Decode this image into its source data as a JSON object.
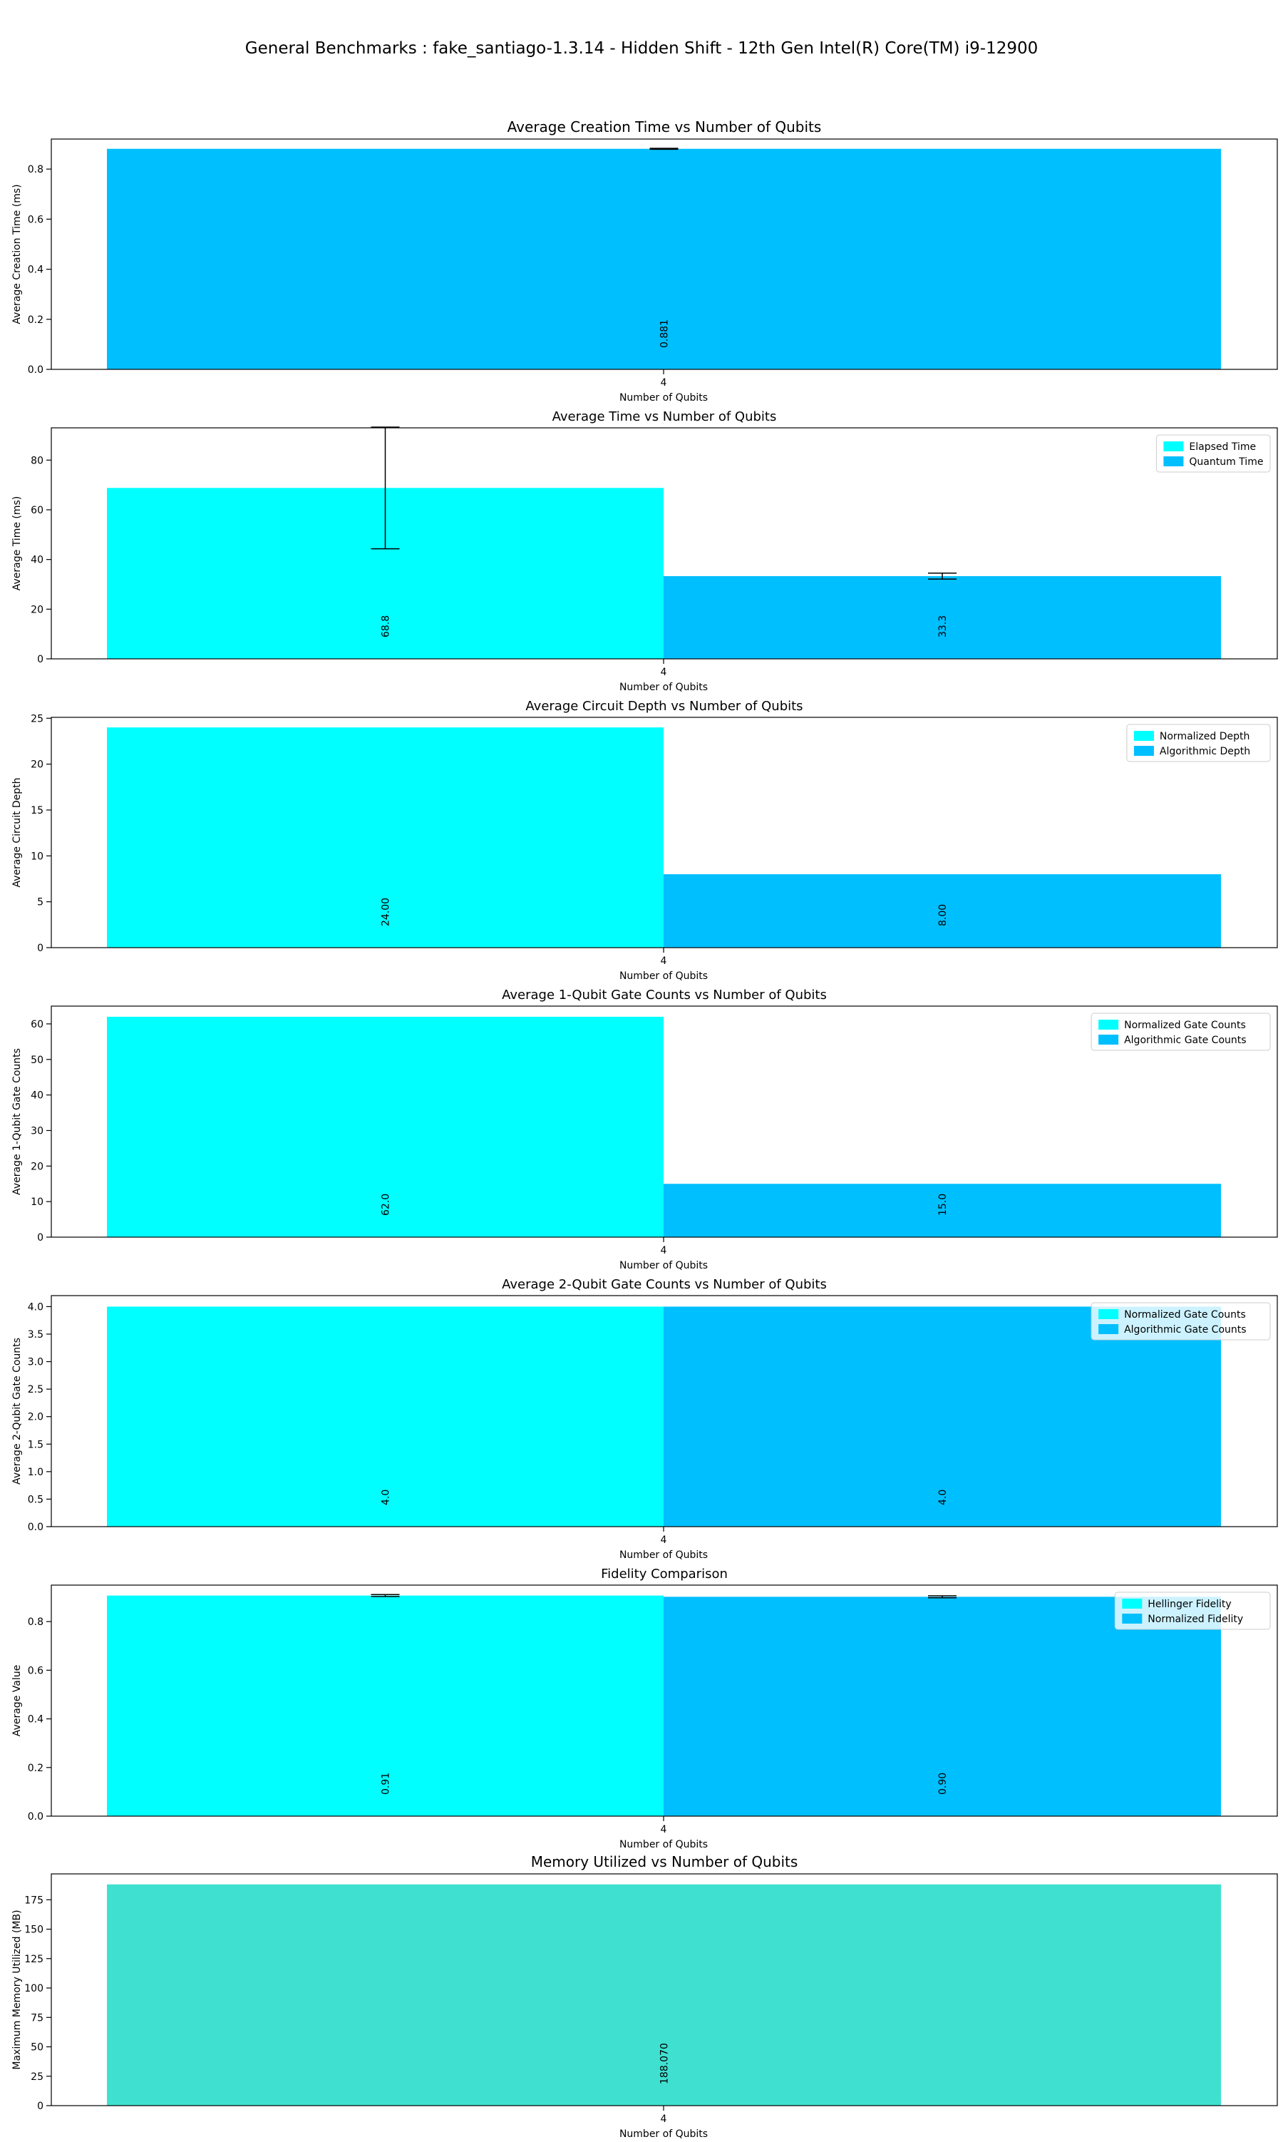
{
  "suptitle": "General Benchmarks : fake_santiago-1.3.14 - Hidden Shift - 12th Gen Intel(R) Core(TM) i9-12900",
  "colors": {
    "cyan": "#00ffff",
    "deepskyblue": "#00bfff",
    "turquoise": "#40e0d0"
  },
  "chart_data": [
    {
      "type": "bar",
      "title": "Average Creation Time vs Number of Qubits",
      "xlabel": "Number of Qubits",
      "ylabel": "Average Creation Time (ms)",
      "categories": [
        "4"
      ],
      "ylim": [
        0,
        0.92
      ],
      "yticks": [
        0,
        0.2,
        0.4,
        0.6,
        0.8
      ],
      "ytick_labels": [
        "0.0",
        "0.2",
        "0.4",
        "0.6",
        "0.8"
      ],
      "legend": "none",
      "series": [
        {
          "values": [
            0.881
          ],
          "error": [
            0.002
          ],
          "color": "#00bfff",
          "labels": [
            "0.881"
          ]
        }
      ]
    },
    {
      "type": "bar",
      "title": "Average Time vs Number of Qubits",
      "xlabel": "Number of Qubits",
      "ylabel": "Average Time (ms)",
      "categories": [
        "4"
      ],
      "ylim": [
        0,
        93
      ],
      "yticks": [
        0,
        20,
        40,
        60,
        80
      ],
      "ytick_labels": [
        "0",
        "20",
        "40",
        "60",
        "80"
      ],
      "legend": "upper right",
      "series": [
        {
          "name": "Elapsed Time",
          "values": [
            68.8
          ],
          "error": [
            24.5
          ],
          "color": "#00ffff",
          "labels": [
            "68.8"
          ]
        },
        {
          "name": "Quantum Time",
          "values": [
            33.3
          ],
          "error": [
            1.2
          ],
          "color": "#00bfff",
          "labels": [
            "33.3"
          ]
        }
      ]
    },
    {
      "type": "bar",
      "title": "Average Circuit Depth vs Number of Qubits",
      "xlabel": "Number of Qubits",
      "ylabel": "Average Circuit Depth",
      "categories": [
        "4"
      ],
      "ylim": [
        0,
        25.1
      ],
      "yticks": [
        0,
        5,
        10,
        15,
        20,
        25
      ],
      "ytick_labels": [
        "0",
        "5",
        "10",
        "15",
        "20",
        "25"
      ],
      "legend": "upper right",
      "series": [
        {
          "name": "Normalized Depth",
          "values": [
            24.0
          ],
          "color": "#00ffff",
          "labels": [
            "24.00"
          ]
        },
        {
          "name": "Algorithmic Depth",
          "values": [
            8.0
          ],
          "color": "#00bfff",
          "labels": [
            "8.00"
          ]
        }
      ]
    },
    {
      "type": "bar",
      "title": "Average 1-Qubit Gate Counts vs Number of Qubits",
      "xlabel": "Number of Qubits",
      "ylabel": "Average 1-Qubit Gate Counts",
      "categories": [
        "4"
      ],
      "ylim": [
        0,
        65
      ],
      "yticks": [
        0,
        10,
        20,
        30,
        40,
        50,
        60
      ],
      "ytick_labels": [
        "0",
        "10",
        "20",
        "30",
        "40",
        "50",
        "60"
      ],
      "legend": "upper right",
      "series": [
        {
          "name": "Normalized Gate Counts",
          "values": [
            62.0
          ],
          "color": "#00ffff",
          "labels": [
            "62.0"
          ]
        },
        {
          "name": "Algorithmic Gate Counts",
          "values": [
            15.0
          ],
          "color": "#00bfff",
          "labels": [
            "15.0"
          ]
        }
      ]
    },
    {
      "type": "bar",
      "title": "Average 2-Qubit Gate Counts vs Number of Qubits",
      "xlabel": "Number of Qubits",
      "ylabel": "Average 2-Qubit Gate Counts",
      "categories": [
        "4"
      ],
      "ylim": [
        0,
        4.2
      ],
      "yticks": [
        0,
        0.5,
        1.0,
        1.5,
        2.0,
        2.5,
        3.0,
        3.5,
        4.0
      ],
      "ytick_labels": [
        "0.0",
        "0.5",
        "1.0",
        "1.5",
        "2.0",
        "2.5",
        "3.0",
        "3.5",
        "4.0"
      ],
      "legend": "upper right",
      "series": [
        {
          "name": "Normalized Gate Counts",
          "values": [
            4.0
          ],
          "color": "#00ffff",
          "labels": [
            "4.0"
          ]
        },
        {
          "name": "Algorithmic Gate Counts",
          "values": [
            4.0
          ],
          "color": "#00bfff",
          "labels": [
            "4.0"
          ]
        }
      ]
    },
    {
      "type": "bar",
      "title": "Fidelity Comparison",
      "xlabel": "Number of Qubits",
      "ylabel": "Average Value",
      "categories": [
        "4"
      ],
      "ylim": [
        0,
        0.95
      ],
      "yticks": [
        0,
        0.2,
        0.4,
        0.6,
        0.8
      ],
      "ytick_labels": [
        "0.0",
        "0.2",
        "0.4",
        "0.6",
        "0.8"
      ],
      "legend": "upper right",
      "series": [
        {
          "name": "Hellinger Fidelity",
          "values": [
            0.907
          ],
          "error": [
            0.004
          ],
          "color": "#00ffff",
          "labels": [
            "0.91"
          ]
        },
        {
          "name": "Normalized Fidelity",
          "values": [
            0.902
          ],
          "error": [
            0.004
          ],
          "color": "#00bfff",
          "labels": [
            "0.90"
          ]
        }
      ]
    },
    {
      "type": "bar",
      "title": "Memory Utilized vs Number of Qubits",
      "xlabel": "Number of Qubits",
      "ylabel": "Maximum Memory Utilized (MB)",
      "categories": [
        "4"
      ],
      "ylim": [
        0,
        197
      ],
      "yticks": [
        0,
        25,
        50,
        75,
        100,
        125,
        150,
        175
      ],
      "ytick_labels": [
        "0",
        "25",
        "50",
        "75",
        "100",
        "125",
        "150",
        "175"
      ],
      "legend": "none",
      "series": [
        {
          "values": [
            188.07
          ],
          "color": "#40e0d0",
          "labels": [
            "188.070"
          ]
        }
      ]
    }
  ]
}
